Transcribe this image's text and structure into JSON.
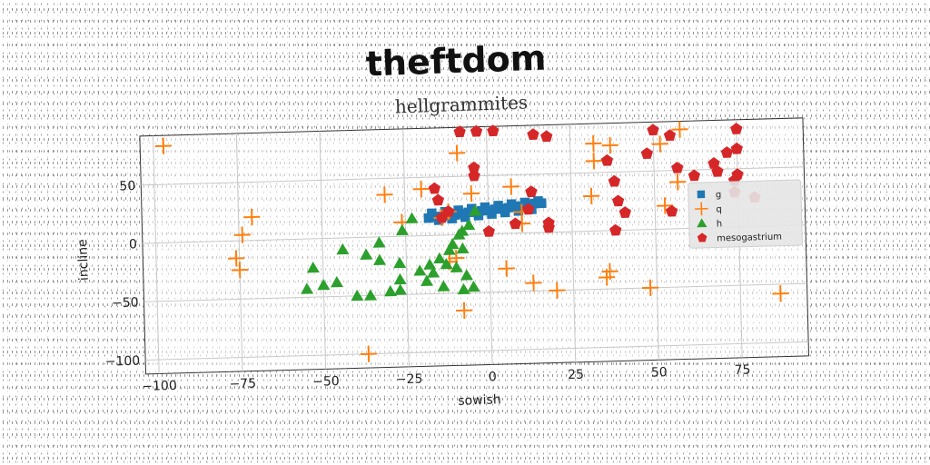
{
  "chart_data": {
    "type": "scatter",
    "title": "theftdom",
    "subtitle": "hellgrammites",
    "xlabel": "sowish",
    "ylabel": "incline",
    "xlim": [
      -104,
      95
    ],
    "ylim": [
      -112,
      92
    ],
    "xticks": [
      -100,
      -75,
      -50,
      -25,
      0,
      25,
      50,
      75
    ],
    "yticks": [
      -100,
      -50,
      0,
      50
    ],
    "grid": true,
    "legend_position": "right",
    "series": [
      {
        "name": "g",
        "marker": "square",
        "color": "#1f77b4",
        "points": [
          [
            -18,
            15
          ],
          [
            -16,
            16
          ],
          [
            -14,
            16
          ],
          [
            -12,
            17
          ],
          [
            -10,
            17
          ],
          [
            -8,
            18
          ],
          [
            -6,
            19
          ],
          [
            -4,
            19
          ],
          [
            -2,
            20
          ],
          [
            0,
            20
          ],
          [
            2,
            21
          ],
          [
            4,
            21
          ],
          [
            6,
            22
          ],
          [
            8,
            23
          ],
          [
            10,
            23
          ],
          [
            12,
            24
          ],
          [
            14,
            25
          ],
          [
            16,
            25
          ],
          [
            -17,
            19
          ],
          [
            -13,
            20
          ],
          [
            -9,
            21
          ],
          [
            -5,
            22
          ],
          [
            -1,
            23
          ],
          [
            3,
            24
          ],
          [
            7,
            25
          ],
          [
            11,
            26
          ],
          [
            15,
            27
          ],
          [
            -15,
            13
          ],
          [
            -11,
            14
          ],
          [
            -7,
            15
          ],
          [
            -3,
            16
          ],
          [
            1,
            17
          ],
          [
            5,
            18
          ],
          [
            9,
            19
          ],
          [
            13,
            20
          ]
        ]
      },
      {
        "name": "q",
        "marker": "plus",
        "color": "#ff7f0e",
        "points": [
          [
            -97,
            83
          ],
          [
            -71,
            20
          ],
          [
            -74,
            5
          ],
          [
            -76,
            -15
          ],
          [
            -75,
            -25
          ],
          [
            -31,
            36
          ],
          [
            -20,
            40
          ],
          [
            -26,
            12
          ],
          [
            -12,
            20
          ],
          [
            -14,
            15
          ],
          [
            -9,
            70
          ],
          [
            -10,
            -20
          ],
          [
            -12,
            -23
          ],
          [
            -8,
            -65
          ],
          [
            -37,
            -100
          ],
          [
            -5,
            35
          ],
          [
            7,
            40
          ],
          [
            10,
            18
          ],
          [
            10,
            8
          ],
          [
            5,
            -30
          ],
          [
            13,
            -43
          ],
          [
            20,
            -50
          ],
          [
            32,
            75
          ],
          [
            32,
            60
          ],
          [
            31,
            30
          ],
          [
            37,
            73
          ],
          [
            35,
            -40
          ],
          [
            36,
            -35
          ],
          [
            52,
            73
          ],
          [
            58,
            85
          ],
          [
            57,
            40
          ],
          [
            53,
            20
          ],
          [
            48,
            -50
          ],
          [
            87,
            -58
          ]
        ]
      },
      {
        "name": "h",
        "marker": "triangle",
        "color": "#2ca02c",
        "points": [
          [
            -55,
            -43
          ],
          [
            -53,
            -25
          ],
          [
            -46,
            -38
          ],
          [
            -44,
            -10
          ],
          [
            -37,
            -15
          ],
          [
            -33,
            -20
          ],
          [
            -27,
            -23
          ],
          [
            -27,
            -37
          ],
          [
            -27,
            -46
          ],
          [
            -21,
            -30
          ],
          [
            -19,
            -39
          ],
          [
            -17,
            -32
          ],
          [
            -14,
            -44
          ],
          [
            -13,
            -25
          ],
          [
            -12,
            -13
          ],
          [
            -10,
            -28
          ],
          [
            -8,
            3
          ],
          [
            -8,
            -12
          ],
          [
            -8,
            -47
          ],
          [
            -5,
            -45
          ],
          [
            -6,
            8
          ],
          [
            -4,
            20
          ],
          [
            -26,
            5
          ],
          [
            -23,
            15
          ],
          [
            -40,
            -50
          ],
          [
            -36,
            -50
          ],
          [
            -30,
            -47
          ],
          [
            -50,
            -40
          ],
          [
            -33,
            -5
          ],
          [
            -18,
            -25
          ],
          [
            -15,
            -20
          ],
          [
            -11,
            -8
          ],
          [
            -9,
            0
          ],
          [
            -7,
            -35
          ]
        ]
      },
      {
        "name": "mesogastrium",
        "marker": "pentagon",
        "color": "#d62728",
        "points": [
          [
            -8,
            88
          ],
          [
            -3,
            88
          ],
          [
            2,
            88
          ],
          [
            14,
            84
          ],
          [
            18,
            82
          ],
          [
            -4,
            57
          ],
          [
            -4,
            50
          ],
          [
            -16,
            40
          ],
          [
            -15,
            30
          ],
          [
            -12,
            20
          ],
          [
            -14,
            15
          ],
          [
            0,
            2
          ],
          [
            8,
            8
          ],
          [
            12,
            20
          ],
          [
            13,
            35
          ],
          [
            18,
            8
          ],
          [
            18,
            4
          ],
          [
            36,
            60
          ],
          [
            38,
            42
          ],
          [
            39,
            25
          ],
          [
            38,
            0
          ],
          [
            41,
            15
          ],
          [
            48,
            65
          ],
          [
            50,
            85
          ],
          [
            55,
            80
          ],
          [
            57,
            52
          ],
          [
            62,
            45
          ],
          [
            68,
            55
          ],
          [
            69,
            48
          ],
          [
            72,
            64
          ],
          [
            75,
            84
          ],
          [
            75,
            67
          ],
          [
            75,
            45
          ],
          [
            74,
            40
          ],
          [
            74,
            30
          ],
          [
            80,
            25
          ],
          [
            55,
            15
          ]
        ]
      }
    ]
  }
}
